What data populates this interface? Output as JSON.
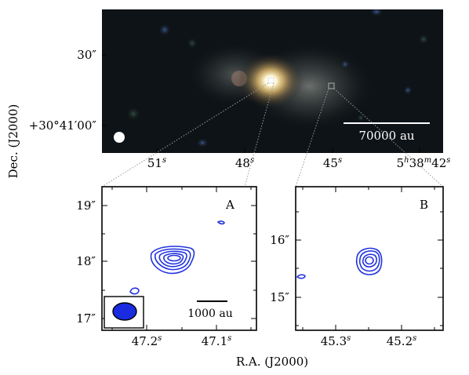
{
  "top_panel": {
    "y_ticks": [
      "30″",
      "+30°41′00″"
    ],
    "x_ticks": [
      "51",
      "48",
      "45",
      "5"
    ],
    "x_tick_sup": [
      "s",
      "s",
      "s",
      "h"
    ],
    "x_last_extra": [
      "38",
      "42"
    ],
    "x_last_extra_sup": [
      "m",
      "s"
    ],
    "scalebar_label": "70000 au"
  },
  "y_axis_label": "Dec. (J2000)",
  "x_axis_label": "R.A. (J2000)",
  "panel_a": {
    "letter": "A",
    "y_ticks": [
      "19″",
      "18″",
      "17″"
    ],
    "x_ticks": [
      "47.2",
      "47.1"
    ],
    "x_tick_sup": "s",
    "scalebar_label": "1000 au"
  },
  "panel_b": {
    "letter": "B",
    "y_ticks": [
      "16″",
      "15″"
    ],
    "x_ticks": [
      "45.3",
      "45.2"
    ],
    "x_tick_sup": "s"
  },
  "colors": {
    "contour": "#2233dd",
    "beam_fill": "#1a2be0",
    "sky_bg": "#0e1317"
  }
}
